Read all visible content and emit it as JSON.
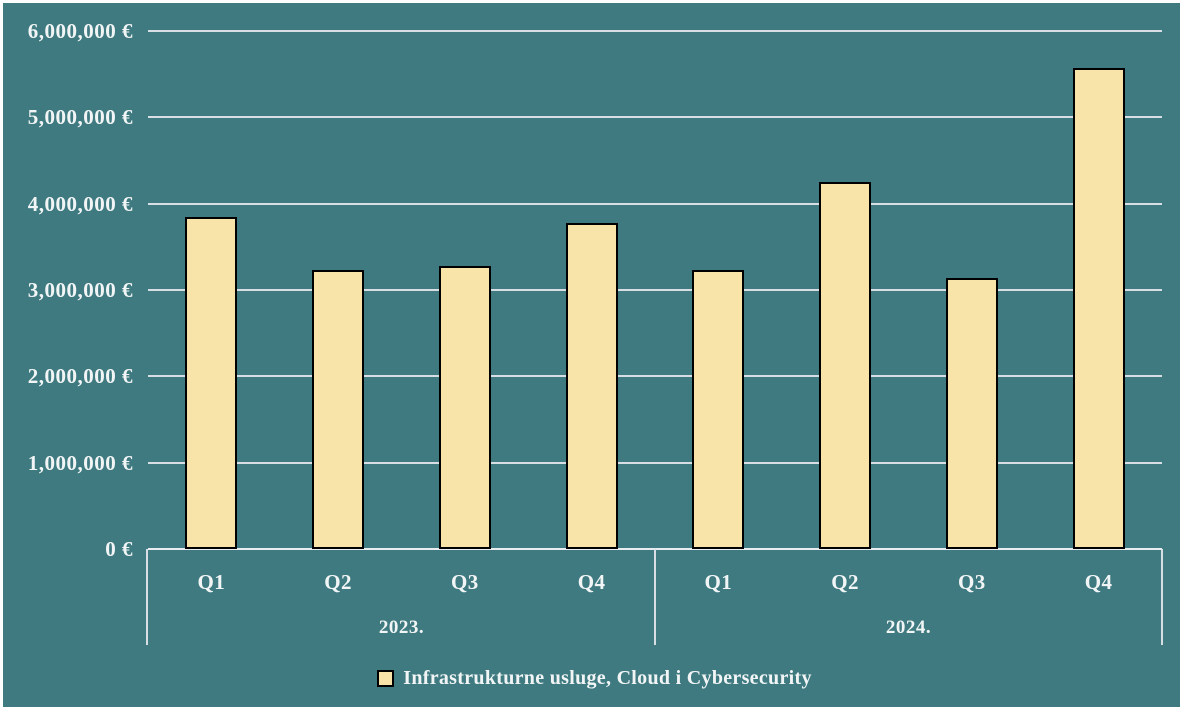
{
  "chart_data": {
    "type": "bar",
    "title": "",
    "unit": "EUR",
    "grid": true,
    "legend_position": "bottom",
    "ylim": [
      0,
      6000000
    ],
    "y_ticks": [
      {
        "value": 6000000,
        "label": "6,000,000 €"
      },
      {
        "value": 5000000,
        "label": "5,000,000 €"
      },
      {
        "value": 4000000,
        "label": "4,000,000 €"
      },
      {
        "value": 3000000,
        "label": "3,000,000 €"
      },
      {
        "value": 2000000,
        "label": "2,000,000 €"
      },
      {
        "value": 1000000,
        "label": "1,000,000 €"
      },
      {
        "value": 0,
        "label": "0 €"
      }
    ],
    "groups": [
      {
        "label": "2023.",
        "categories": [
          "Q1",
          "Q2",
          "Q3",
          "Q4"
        ],
        "values": [
          3840000,
          3230000,
          3280000,
          3780000
        ]
      },
      {
        "label": "2024.",
        "categories": [
          "Q1",
          "Q2",
          "Q3",
          "Q4"
        ],
        "values": [
          3230000,
          4250000,
          3140000,
          5570000
        ]
      }
    ],
    "series": [
      {
        "name": "Infrastrukturne usluge, Cloud i Cybersecurity",
        "color": "#F8E3A8",
        "values": [
          3840000,
          3230000,
          3280000,
          3780000,
          3230000,
          4250000,
          3140000,
          5570000
        ]
      }
    ]
  },
  "legend": {
    "label": "Infrastrukturne usluge, Cloud i Cybersecurity",
    "swatch_color": "#F8E3A8"
  },
  "colors": {
    "background": "#3E7A80",
    "bar_fill": "#F8E3A8",
    "bar_border": "#000000",
    "gridline": "#D7DFE4",
    "axis_line": "#E9EDEF",
    "text": "#F2F5F5",
    "frame": "#FFFFFF"
  }
}
